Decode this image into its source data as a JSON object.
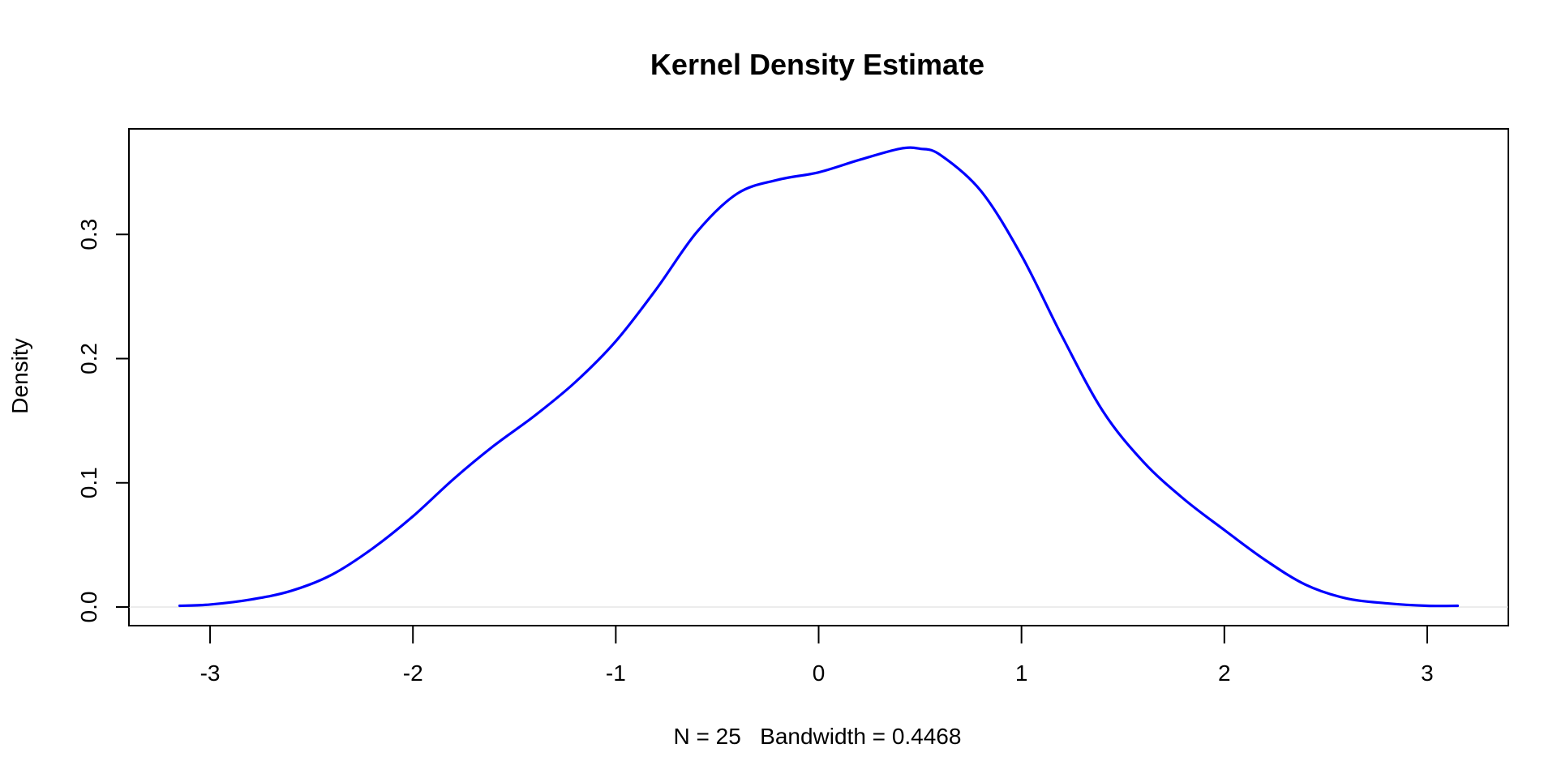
{
  "chart_data": {
    "type": "line",
    "title": "Kernel Density Estimate",
    "xlabel": "N = 25   Bandwidth = 0.4468",
    "ylabel": "Density",
    "xlim": [
      -3.4,
      3.4
    ],
    "ylim": [
      -0.015,
      0.385
    ],
    "x_ticks": [
      -3,
      -2,
      -1,
      0,
      1,
      2,
      3
    ],
    "x_tick_labels": [
      "-3",
      "-2",
      "-1",
      "0",
      "1",
      "2",
      "3"
    ],
    "y_ticks": [
      0.0,
      0.1,
      0.2,
      0.3
    ],
    "y_tick_labels": [
      "0.0",
      "0.1",
      "0.2",
      "0.3"
    ],
    "reference_line_y": 0,
    "grid": false,
    "legend": "none",
    "colors": {
      "series": "#0000ff",
      "reference_line": "#d9d9d9",
      "axis": "#000000"
    },
    "series": [
      {
        "x": [
          -3.15,
          -3.0,
          -2.8,
          -2.6,
          -2.4,
          -2.2,
          -2.0,
          -1.8,
          -1.6,
          -1.4,
          -1.2,
          -1.0,
          -0.8,
          -0.6,
          -0.4,
          -0.2,
          0.0,
          0.2,
          0.4,
          0.5,
          0.6,
          0.8,
          1.0,
          1.2,
          1.4,
          1.6,
          1.8,
          2.0,
          2.2,
          2.4,
          2.6,
          2.8,
          3.0,
          3.15
        ],
        "y": [
          0.001,
          0.002,
          0.006,
          0.013,
          0.026,
          0.047,
          0.073,
          0.103,
          0.13,
          0.154,
          0.181,
          0.214,
          0.256,
          0.302,
          0.333,
          0.344,
          0.35,
          0.36,
          0.369,
          0.369,
          0.364,
          0.335,
          0.283,
          0.218,
          0.158,
          0.117,
          0.087,
          0.062,
          0.038,
          0.018,
          0.007,
          0.003,
          0.001,
          0.001
        ]
      }
    ]
  }
}
